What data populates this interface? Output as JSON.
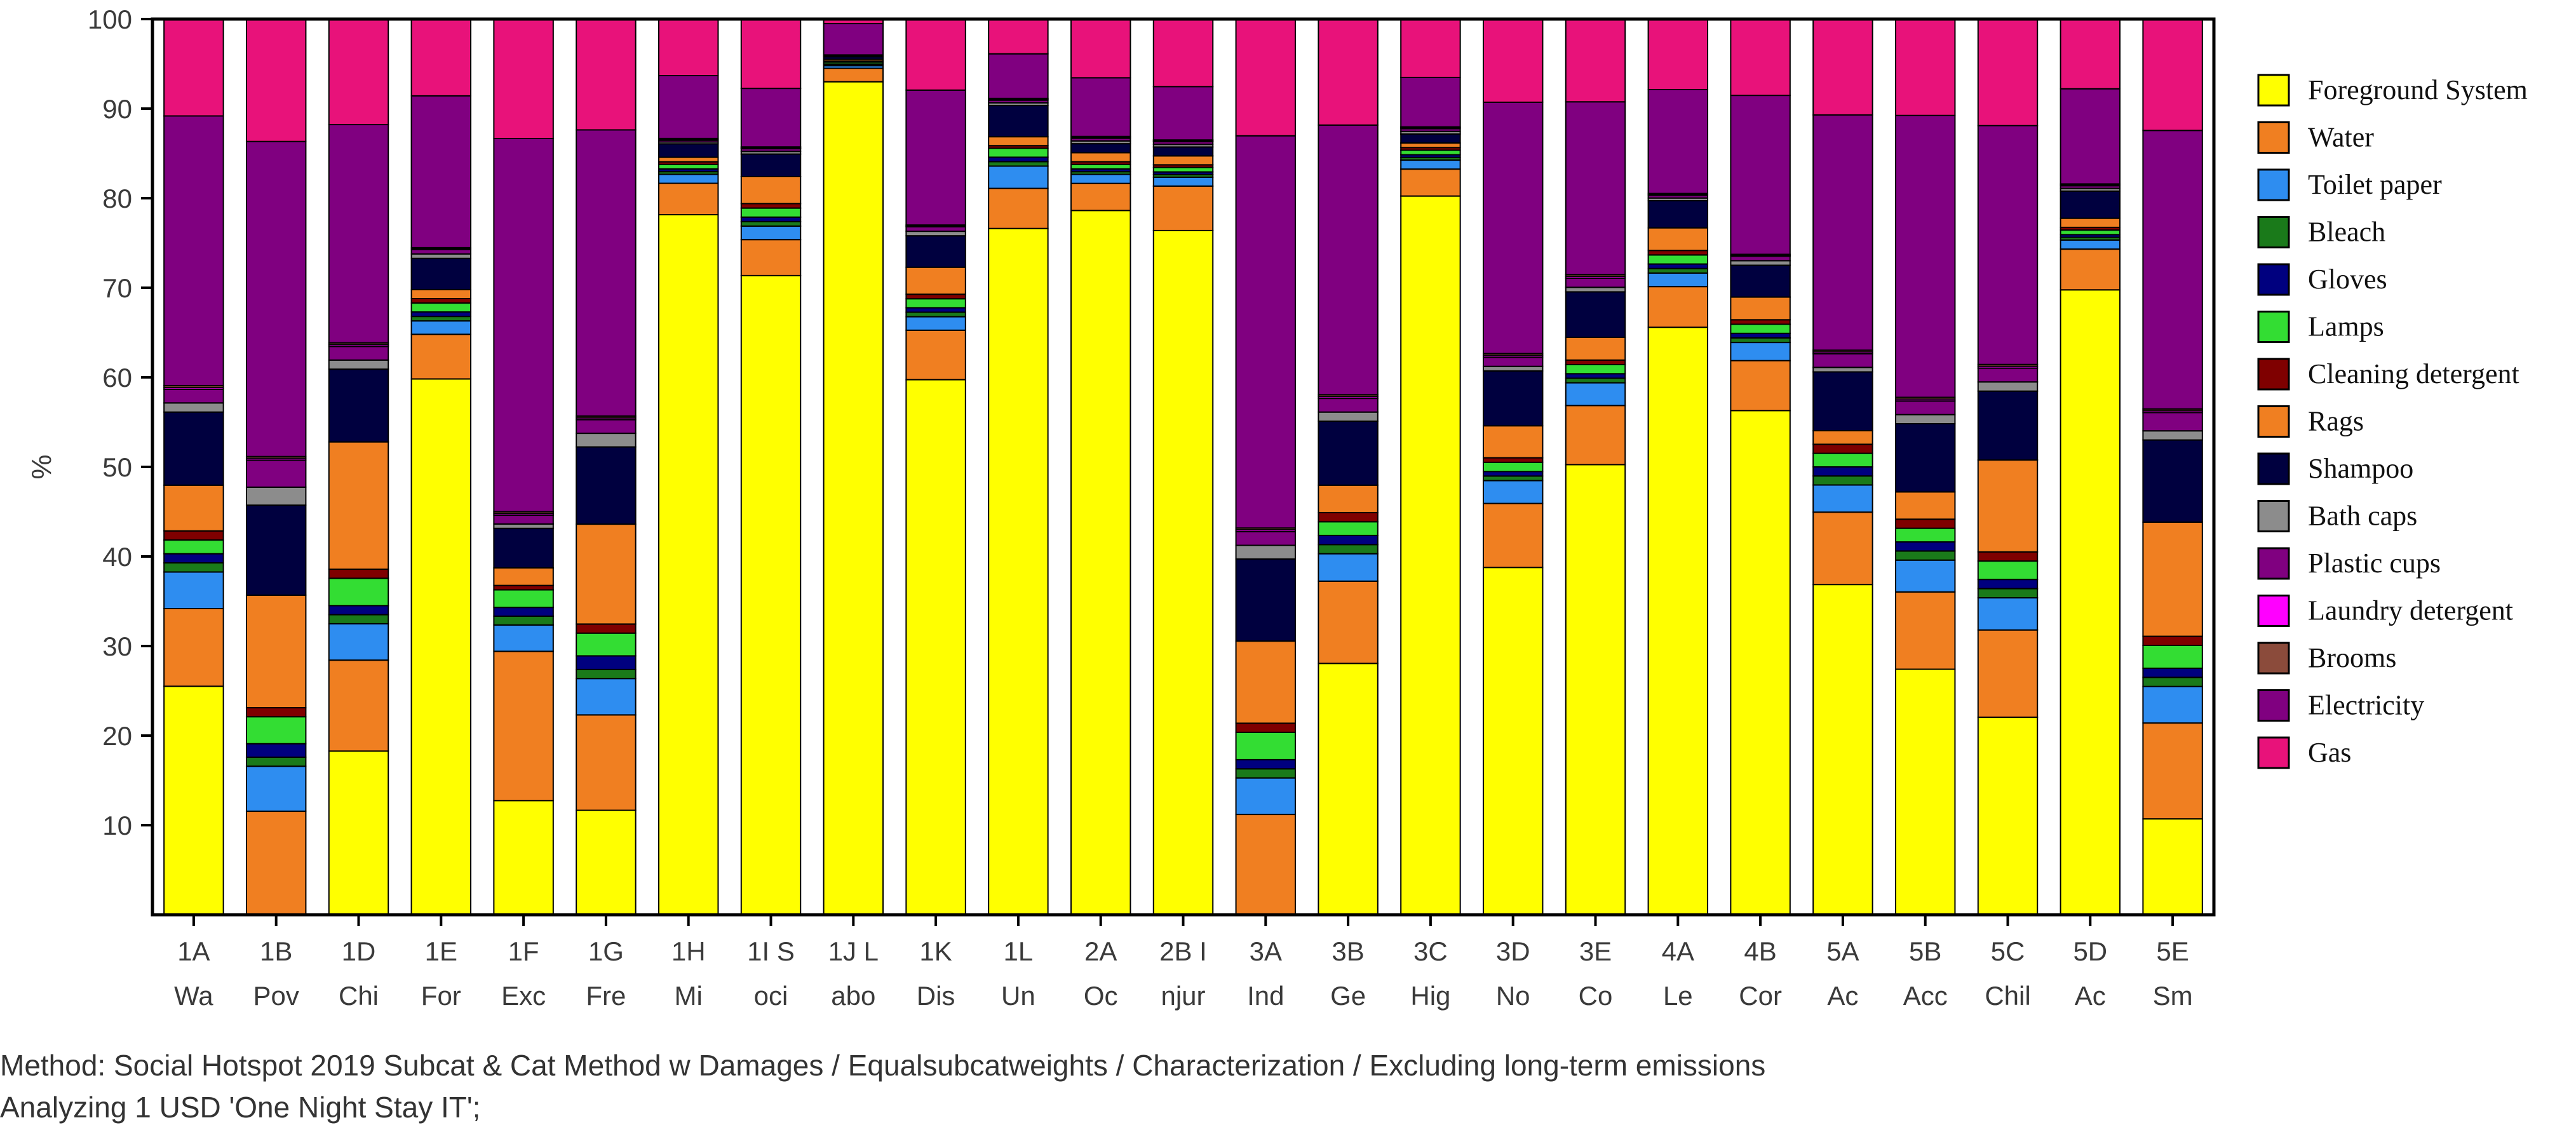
{
  "chart_data": {
    "type": "stacked-bar",
    "ylabel": "%",
    "ylim": [
      0,
      100
    ],
    "yticks": [
      10,
      20,
      30,
      40,
      50,
      60,
      70,
      80,
      90,
      100
    ],
    "legend_position": "right",
    "categories": [
      [
        "1A",
        "Wa"
      ],
      [
        "1B",
        "Pov"
      ],
      [
        "1D",
        "Chi"
      ],
      [
        "1E",
        "For"
      ],
      [
        "1F",
        "Exc"
      ],
      [
        "1G",
        "Fre"
      ],
      [
        "1H",
        "Mi"
      ],
      [
        "1I S",
        "oci"
      ],
      [
        "1J L",
        "abo"
      ],
      [
        "1K",
        "Dis"
      ],
      [
        "1L",
        "Un"
      ],
      [
        "2A",
        "Oc"
      ],
      [
        "2B I",
        "njur"
      ],
      [
        "3A",
        "Ind"
      ],
      [
        "3B",
        "Ge"
      ],
      [
        "3C",
        "Hig"
      ],
      [
        "3D",
        "No"
      ],
      [
        "3E",
        "Co"
      ],
      [
        "4A",
        "Le"
      ],
      [
        "4B",
        "Cor"
      ],
      [
        "5A",
        "Ac"
      ],
      [
        "5B",
        "Acc"
      ],
      [
        "5C",
        "Chil"
      ],
      [
        "5D",
        "Ac"
      ],
      [
        "5E",
        "Sm"
      ]
    ],
    "series": [
      {
        "name": "Foreground System",
        "color": "#FFFF00",
        "values": [
          25,
          0,
          18,
          60,
          13,
          11.5,
          78,
          71,
          93,
          59.5,
          77,
          78,
          77,
          0,
          27.5,
          80,
          38,
          49.5,
          65,
          55.5,
          36.5,
          27,
          21.5,
          69,
          10.5
        ]
      },
      {
        "name": "Water",
        "color": "#F07F21",
        "values": [
          8.5,
          11.5,
          10,
          5,
          17,
          10.5,
          3.5,
          4,
          1.5,
          5.5,
          4.5,
          3,
          5,
          11,
          9,
          3,
          7,
          6.5,
          4.5,
          5.5,
          8,
          8.5,
          9.5,
          4.5,
          10.5
        ]
      },
      {
        "name": "Toilet paper",
        "color": "#2E8DF0",
        "values": [
          4,
          5,
          4,
          1.5,
          3,
          4,
          1,
          1.5,
          0.3,
          1.5,
          2.5,
          1,
          1,
          4,
          3,
          1,
          2.5,
          2.5,
          1.5,
          2,
          3,
          3.5,
          3.5,
          1,
          4
        ]
      },
      {
        "name": "Bleach",
        "color": "#1A7A1A",
        "values": [
          1,
          1,
          1,
          0.5,
          1,
          1,
          0.3,
          0.5,
          0.1,
          0.5,
          0.5,
          0.3,
          0.3,
          1,
          1,
          0.3,
          0.5,
          0.5,
          0.5,
          0.5,
          1,
          1,
          1,
          0.3,
          1
        ]
      },
      {
        "name": "Gloves",
        "color": "#00007F",
        "values": [
          1,
          1.5,
          1,
          0.5,
          1,
          1.5,
          0.3,
          0.5,
          0.1,
          0.5,
          0.5,
          0.3,
          0.3,
          1,
          1,
          0.3,
          0.5,
          0.5,
          0.5,
          0.5,
          1,
          1,
          1,
          0.3,
          1
        ]
      },
      {
        "name": "Lamps",
        "color": "#33DD33",
        "values": [
          1.5,
          3,
          3,
          1,
          2,
          2.5,
          0.5,
          1,
          0.2,
          1,
          1,
          0.5,
          0.5,
          3,
          1.5,
          0.5,
          1,
          1,
          1,
          1,
          1.5,
          1.5,
          2,
          0.5,
          2.5
        ]
      },
      {
        "name": "Cleaning detergent",
        "color": "#7F0000",
        "values": [
          1,
          1,
          1,
          0.5,
          0.5,
          1,
          0.3,
          0.5,
          0.1,
          0.5,
          0.3,
          0.3,
          0.3,
          1,
          1,
          0.3,
          0.5,
          0.5,
          0.5,
          0.5,
          1,
          1,
          1,
          0.3,
          1
        ]
      },
      {
        "name": "Rags",
        "color": "#F07F21",
        "values": [
          5,
          12.5,
          14,
          1,
          2,
          11,
          0.5,
          3,
          0.2,
          3,
          1,
          1,
          1,
          9,
          3,
          0.5,
          3.5,
          2.5,
          2.5,
          2.5,
          1.5,
          3,
          10,
          1,
          12.5
        ]
      },
      {
        "name": "Shampoo",
        "color": "#00003F",
        "values": [
          8,
          10,
          8,
          3.5,
          4.5,
          8.5,
          1.5,
          2.5,
          0.3,
          3.5,
          3.5,
          1,
          1,
          9,
          7,
          1,
          6,
          5,
          3,
          3.5,
          6.5,
          7.5,
          7.5,
          3,
          9
        ]
      },
      {
        "name": "Bath caps",
        "color": "#8C8C8C",
        "values": [
          1,
          2,
          1,
          0.5,
          0.5,
          1.5,
          0.2,
          0.3,
          0.1,
          0.5,
          0.3,
          0.3,
          0.3,
          1.5,
          1,
          0.3,
          0.5,
          0.5,
          0.3,
          0.5,
          0.5,
          1,
          1,
          0.3,
          1
        ]
      },
      {
        "name": "Plastic cups",
        "color": "#800080",
        "values": [
          1.5,
          3,
          1.5,
          0.5,
          1,
          1.5,
          0.2,
          0.3,
          0.1,
          0.5,
          0.3,
          0.3,
          0.3,
          1.5,
          1.5,
          0.3,
          1,
          1,
          0.3,
          0.5,
          1.5,
          1.5,
          1.5,
          0.3,
          2
        ]
      },
      {
        "name": "Laundry detergent",
        "color": "#FF00FF",
        "values": [
          0.2,
          0.2,
          0.2,
          0.1,
          0.2,
          0.2,
          0.1,
          0.1,
          0,
          0.1,
          0.1,
          0.1,
          0.1,
          0.2,
          0.2,
          0.1,
          0.2,
          0.2,
          0.1,
          0.1,
          0.2,
          0.2,
          0.2,
          0.1,
          0.2
        ]
      },
      {
        "name": "Brooms",
        "color": "#8B4B3B",
        "values": [
          0.2,
          0.2,
          0.2,
          0.1,
          0.2,
          0.2,
          0.1,
          0.1,
          0,
          0.1,
          0.1,
          0.1,
          0.1,
          0.2,
          0.2,
          0.1,
          0.2,
          0.2,
          0.1,
          0.1,
          0.2,
          0.2,
          0.2,
          0.1,
          0.2
        ]
      },
      {
        "name": "Electricity",
        "color": "#800080",
        "values": [
          29.5,
          35,
          24,
          17,
          42.5,
          31.5,
          7,
          6.5,
          3.5,
          15,
          5,
          6.5,
          6,
          43,
          29.5,
          5.5,
          27.5,
          19,
          11.5,
          17.5,
          26,
          31,
          26,
          10.5,
          30.5
        ]
      },
      {
        "name": "Gas",
        "color": "#E8127A",
        "values": [
          10.6,
          13.6,
          11.6,
          8.6,
          13.6,
          12.2,
          6.3,
          7.7,
          0.5,
          7.9,
          3.9,
          6.5,
          7.6,
          12.8,
          11.6,
          6.5,
          9.1,
          9.1,
          7.8,
          8.4,
          10.6,
          10.6,
          11.6,
          7.7,
          12.2
        ]
      }
    ]
  },
  "footer": {
    "method": "Method: Social Hotspot 2019 Subcat & Cat Method w Damages / Equalsubcatweights / Characterization / Excluding long-term emissions",
    "analyzing": "Analyzing 1 USD 'One Night Stay IT';"
  }
}
